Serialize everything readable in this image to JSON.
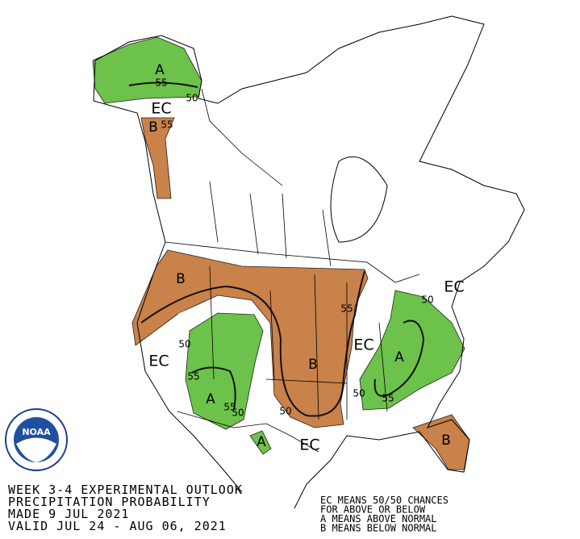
{
  "title_block": {
    "lines": [
      "WEEK 3-4 EXPERIMENTAL OUTLOOK",
      "PRECIPITATION PROBABILITY",
      "MADE  9 JUL 2021",
      "VALID  JUL 24 - AUG 06, 2021"
    ]
  },
  "legend": {
    "lines": [
      "EC MEANS 50/50 CHANCES",
      "FOR ABOVE OR BELOW",
      "A MEANS ABOVE NORMAL",
      "B MEANS BELOW NORMAL"
    ]
  },
  "logo": {
    "text": "NOAA"
  },
  "map_labels": [
    {
      "text": "A"
    },
    {
      "text": "55"
    },
    {
      "text": "50"
    },
    {
      "text": "EC"
    },
    {
      "text": "B"
    },
    {
      "text": "55"
    },
    {
      "text": "B"
    },
    {
      "text": "50"
    },
    {
      "text": "55"
    },
    {
      "text": "A"
    },
    {
      "text": "55"
    },
    {
      "text": "50"
    },
    {
      "text": "EC"
    },
    {
      "text": "B"
    },
    {
      "text": "55"
    },
    {
      "text": "50"
    },
    {
      "text": "EC"
    },
    {
      "text": "EC"
    },
    {
      "text": "50"
    },
    {
      "text": "A"
    },
    {
      "text": "50"
    },
    {
      "text": "55"
    },
    {
      "text": "B"
    },
    {
      "text": "A"
    },
    {
      "text": "EC"
    }
  ]
}
